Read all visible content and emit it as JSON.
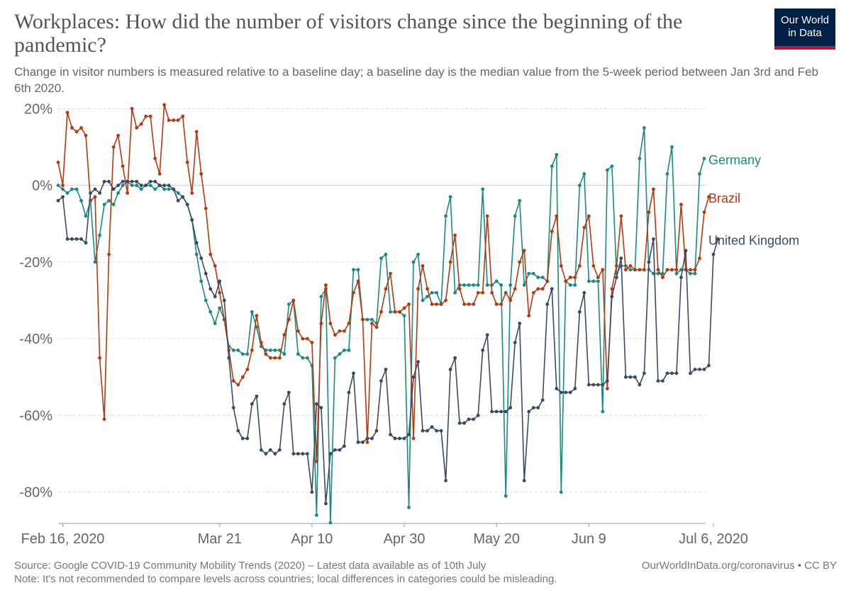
{
  "header": {
    "title": "Workplaces: How did the number of visitors change since the beginning of the pandemic?",
    "subtitle": "Change in visitor numbers is measured relative to a baseline day; a baseline day is the median value from the 5-week period between Jan 3rd and Feb 6th 2020.",
    "logo_line1": "Our World",
    "logo_line2": "in Data"
  },
  "footer": {
    "source": "Source: Google COVID-19 Community Mobility Trends (2020) – Latest data available as of 10th July",
    "link": "OurWorldInData.org/coronavirus • CC BY",
    "note": "Note: It's not recommended to compare levels across countries; local differences in categories could be misleading."
  },
  "colors": {
    "germany": "#1a8a80",
    "brazil": "#b5390f",
    "uk": "#3b4a63",
    "grid": "#dddddd",
    "zero": "#cccccc",
    "tick_text": "#666666"
  },
  "chart_data": {
    "type": "line",
    "title": "Workplaces: How did the number of visitors change since the beginning of the pandemic?",
    "xlabel": "",
    "ylabel": "",
    "ylim": [
      -88,
      21
    ],
    "x_start": "2020-02-15",
    "x_end": "2020-07-06",
    "x_ticks": [
      {
        "label": "Feb 16, 2020",
        "day": 1
      },
      {
        "label": "Mar 21",
        "day": 35
      },
      {
        "label": "Apr 10",
        "day": 55
      },
      {
        "label": "Apr 30",
        "day": 75
      },
      {
        "label": "May 20",
        "day": 95
      },
      {
        "label": "Jun 9",
        "day": 115
      },
      {
        "label": "Jul 6, 2020",
        "day": 142
      }
    ],
    "y_ticks": [
      {
        "label": "20%",
        "value": 20
      },
      {
        "label": "0%",
        "value": 0
      },
      {
        "label": "-20%",
        "value": -20
      },
      {
        "label": "-40%",
        "value": -40
      },
      {
        "label": "-60%",
        "value": -60
      },
      {
        "label": "-80%",
        "value": -80
      }
    ],
    "series": [
      {
        "name": "Germany",
        "color_key": "germany",
        "values": [
          0,
          -1,
          -2,
          -1,
          -1,
          -4,
          -8,
          -4,
          -20,
          -13,
          -5,
          -4,
          -5,
          -2,
          0,
          1,
          0,
          0,
          -1,
          0,
          0,
          -1,
          0,
          -1,
          -1,
          -1,
          -2,
          -3,
          -5,
          -9,
          -18,
          -25,
          -30,
          -33,
          -36,
          -32,
          -35,
          -42,
          -43,
          -43,
          -44,
          -44,
          -33,
          -37,
          -42,
          -43,
          -43,
          -43,
          -43,
          -44,
          -31,
          -30,
          -44,
          -45,
          -45,
          -47,
          -86,
          -29,
          -27,
          -88,
          -45,
          -44,
          -43,
          -43,
          -22,
          -22,
          -35,
          -35,
          -35,
          -36,
          -19,
          -18,
          -33,
          -33,
          -33,
          -34,
          -84,
          -20,
          -18,
          -30,
          -29,
          -28,
          -28,
          -31,
          -8,
          -3,
          -28,
          -26,
          -26,
          -26,
          -26,
          -26,
          -1,
          -26,
          -26,
          -25,
          -26,
          -81,
          -26,
          -8,
          -4,
          -26,
          -23,
          -23,
          -24,
          -24,
          -25,
          5,
          8,
          -80,
          -25,
          -26,
          -26,
          0,
          3,
          -25,
          -25,
          -25,
          -59,
          4,
          5,
          -23,
          -21,
          -21,
          -22,
          -22,
          7,
          15,
          -22,
          -23,
          -23,
          -23,
          3,
          10,
          -23,
          -22,
          -22,
          -23,
          -23,
          3,
          7
        ]
      },
      {
        "name": "Brazil",
        "color_key": "brazil",
        "values": [
          6,
          0,
          19,
          15,
          14,
          15,
          13,
          -4,
          -3,
          -45,
          -61,
          -18,
          10,
          13,
          5,
          -2,
          20,
          15,
          16,
          18,
          18,
          7,
          3,
          21,
          17,
          17,
          17,
          18,
          6,
          -2,
          14,
          3,
          -6,
          -18,
          -21,
          -28,
          -35,
          -43,
          -51,
          -52,
          -50,
          -48,
          -43,
          -34,
          -41,
          -44,
          -45,
          -45,
          -45,
          -39,
          -35,
          -30,
          -38,
          -40,
          -40,
          -41,
          -72,
          -36,
          -26,
          -36,
          -39,
          -38,
          -38,
          -36,
          -28,
          -25,
          -35,
          -67,
          -36,
          -37,
          -33,
          -27,
          -23,
          -33,
          -33,
          -32,
          -31,
          -66,
          -27,
          -21,
          -27,
          -31,
          -31,
          -31,
          -30,
          -20,
          -13,
          -27,
          -31,
          -31,
          -31,
          -28,
          -28,
          -8,
          -28,
          -31,
          -31,
          -28,
          -30,
          -27,
          -20,
          -17,
          -34,
          -28,
          -27,
          -27,
          -25,
          -12,
          -8,
          -21,
          -25,
          -24,
          -24,
          -21,
          -11,
          -8,
          -21,
          -24,
          -22,
          -53,
          -27,
          -21,
          -8,
          -22,
          -21,
          -22,
          -22,
          -22,
          -7,
          -1,
          -22,
          -24,
          -22,
          -22,
          -22,
          -5,
          -22,
          -22,
          -22,
          -19,
          -7,
          -3
        ]
      },
      {
        "name": "United Kingdom",
        "color_key": "uk",
        "values": [
          -4,
          -3,
          -14,
          -14,
          -14,
          -14,
          -15,
          -2,
          -1,
          -2,
          1,
          1,
          -1,
          0,
          1,
          1,
          1,
          1,
          0,
          0,
          1,
          1,
          0,
          0,
          0,
          -1,
          -4,
          -3,
          -5,
          -9,
          -15,
          -19,
          -23,
          -27,
          -29,
          -25,
          -30,
          -45,
          -58,
          -64,
          -66,
          -66,
          -57,
          -55,
          -69,
          -70,
          -69,
          -70,
          -69,
          -57,
          -54,
          -70,
          -70,
          -70,
          -70,
          -80,
          -57,
          -58,
          -83,
          -70,
          -69,
          -69,
          -68,
          -54,
          -49,
          -67,
          -67,
          -66,
          -66,
          -64,
          -51,
          -48,
          -65,
          -66,
          -66,
          -66,
          -65,
          -50,
          -46,
          -64,
          -64,
          -63,
          -64,
          -64,
          -77,
          -48,
          -45,
          -62,
          -62,
          -61,
          -61,
          -60,
          -43,
          -39,
          -59,
          -59,
          -59,
          -59,
          -58,
          -41,
          -36,
          -77,
          -59,
          -58,
          -58,
          -56,
          -31,
          -27,
          -53,
          -54,
          -54,
          -54,
          -53,
          -33,
          -28,
          -52,
          -52,
          -52,
          -52,
          -51,
          -29,
          -24,
          -19,
          -50,
          -50,
          -50,
          -52,
          -49,
          -20,
          -14,
          -51,
          -51,
          -49,
          -49,
          -49,
          -24,
          -17,
          -49,
          -48,
          -48,
          -48,
          -47,
          -18,
          -14
        ]
      }
    ]
  }
}
